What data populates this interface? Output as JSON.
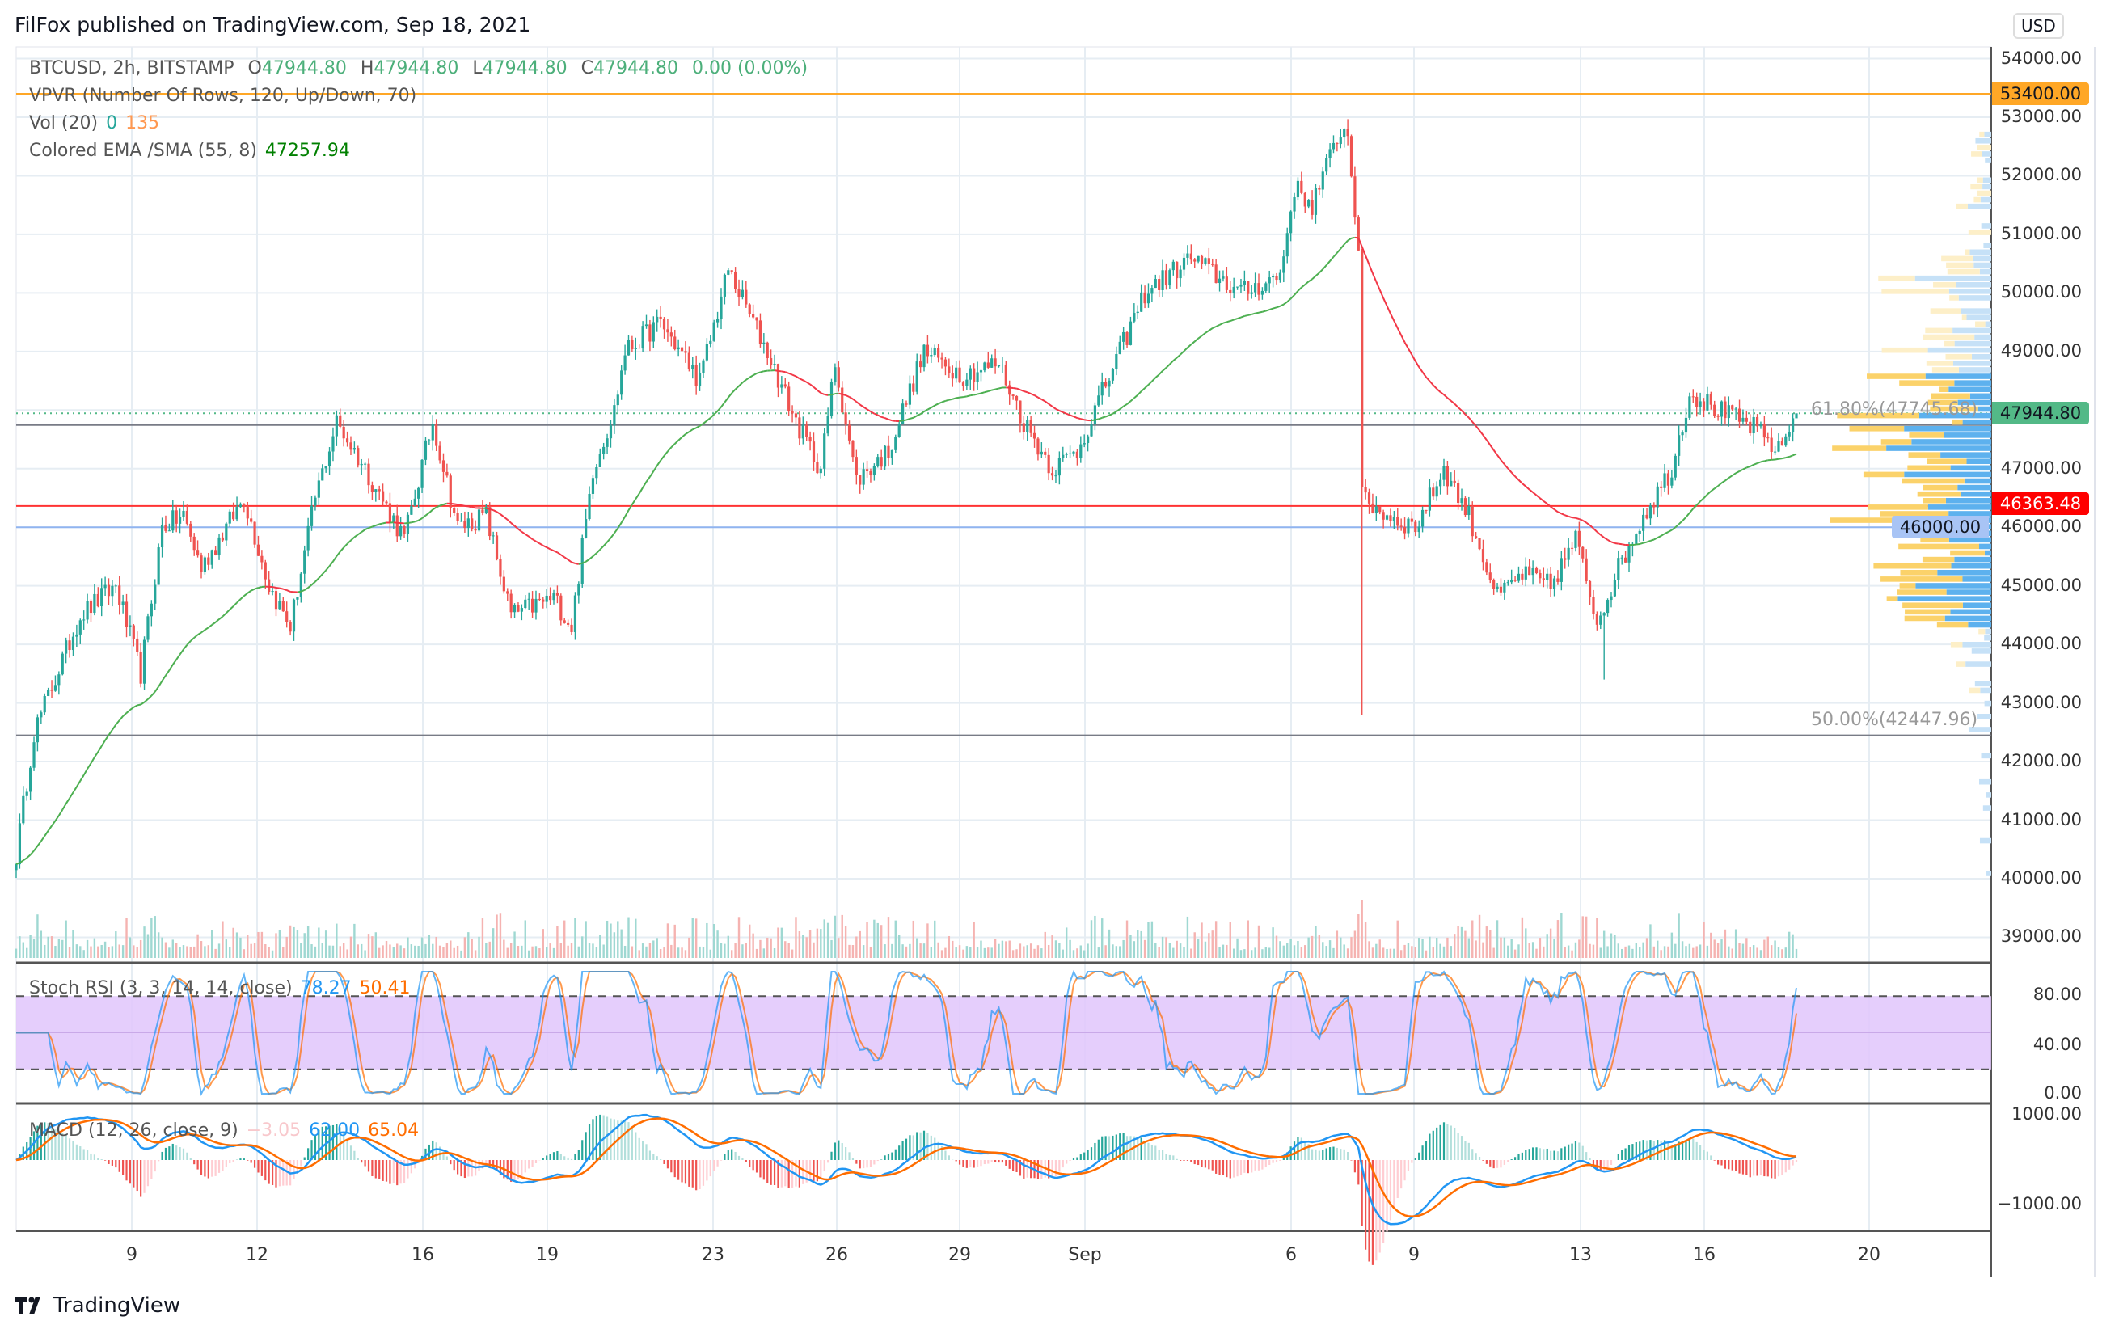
{
  "header": {
    "published": "FilFox published on TradingView.com, Sep 18, 2021"
  },
  "legend": {
    "symbol": "BTCUSD, 2h, BITSTAMP",
    "o_label": "O",
    "o": "47944.80",
    "h_label": "H",
    "h": "47944.80",
    "l_label": "L",
    "l": "47944.80",
    "c_label": "C",
    "c": "47944.80",
    "change": "0.00 (0.00%)",
    "vpvr": "VPVR (Number Of Rows, 120, Up/Down, 70)",
    "vol": "Vol (20)",
    "vol_a": "0",
    "vol_b": "135",
    "ema": "Colored EMA /SMA (55, 8)",
    "ema_val": "47257.94",
    "stoch": "Stoch RSI (3, 3, 14, 14, close)",
    "stoch_k": "78.27",
    "stoch_d": "50.41",
    "macd": "MACD (12, 26, close, 9)",
    "macd_hist": "−3.05",
    "macd_line": "62.00",
    "macd_signal": "65.04"
  },
  "price_axis": {
    "currency": "USD",
    "labels": [
      "54000.00",
      "53000.00",
      "52000.00",
      "51000.00",
      "50000.00",
      "49000.00",
      "48000.00",
      "47000.00",
      "46000.00",
      "45000.00",
      "44000.00",
      "43000.00",
      "42000.00",
      "41000.00",
      "40000.00",
      "39000.00"
    ],
    "tags": [
      {
        "text": "53400.00",
        "bg": "#ffa726",
        "fg": "#131722"
      },
      {
        "text": "47944.80",
        "bg": "#53b987",
        "fg": "#131722"
      },
      {
        "text": "46363.48",
        "bg": "#ff0000",
        "fg": "#ffffff"
      },
      {
        "text": "46000.00",
        "bg": "#a8c4f5",
        "fg": "#131722"
      }
    ]
  },
  "stoch_axis": [
    "80.00",
    "40.00",
    "0.00"
  ],
  "macd_axis": [
    "1000.00",
    "−1000.00"
  ],
  "time_axis": [
    "9",
    "12",
    "16",
    "19",
    "23",
    "26",
    "29",
    "Sep",
    "6",
    "9",
    "13",
    "16",
    "20"
  ],
  "fib": {
    "f618": "61.80%(47745.68)",
    "f50": "50.00%(42447.96)"
  },
  "footer": {
    "brand": "TradingView"
  },
  "colors": {
    "up": "#26a69a",
    "down": "#ef5350",
    "ema_up": "#4caf50",
    "ema_down": "#f23645",
    "stoch_k": "#2196f3",
    "stoch_d": "#ff6d00",
    "band": "#e1c6fb"
  },
  "chart_data": {
    "type": "candlestick",
    "title": "BTCUSD, 2h, BITSTAMP",
    "x_unit": "2h bar index (Aug 7 – Sep 18, 2021)",
    "close_keypoints": [
      [
        0,
        40400
      ],
      [
        5,
        42500
      ],
      [
        18,
        44500
      ],
      [
        28,
        45000
      ],
      [
        35,
        43500
      ],
      [
        41,
        46000
      ],
      [
        47,
        46200
      ],
      [
        52,
        45300
      ],
      [
        64,
        46500
      ],
      [
        71,
        45000
      ],
      [
        77,
        44300
      ],
      [
        84,
        46500
      ],
      [
        90,
        47800
      ],
      [
        98,
        47000
      ],
      [
        109,
        45800
      ],
      [
        117,
        47800
      ],
      [
        124,
        46000
      ],
      [
        132,
        46200
      ],
      [
        139,
        44500
      ],
      [
        151,
        44800
      ],
      [
        156,
        44300
      ],
      [
        162,
        47000
      ],
      [
        168,
        48000
      ],
      [
        171,
        49000
      ],
      [
        181,
        49500
      ],
      [
        192,
        48500
      ],
      [
        200,
        50400
      ],
      [
        211,
        49000
      ],
      [
        219,
        47800
      ],
      [
        226,
        47000
      ],
      [
        230,
        48800
      ],
      [
        236,
        46800
      ],
      [
        245,
        47300
      ],
      [
        255,
        49000
      ],
      [
        266,
        48600
      ],
      [
        276,
        48800
      ],
      [
        283,
        47800
      ],
      [
        291,
        47000
      ],
      [
        298,
        47300
      ],
      [
        310,
        49000
      ],
      [
        317,
        50000
      ],
      [
        330,
        50600
      ],
      [
        344,
        50000
      ],
      [
        355,
        50300
      ],
      [
        359,
        51800
      ],
      [
        364,
        51500
      ],
      [
        372,
        52800
      ],
      [
        374,
        52700
      ],
      [
        377,
        50800
      ],
      [
        378,
        46500
      ],
      [
        385,
        46200
      ],
      [
        393,
        46000
      ],
      [
        401,
        47000
      ],
      [
        408,
        46200
      ],
      [
        416,
        44800
      ],
      [
        423,
        45200
      ],
      [
        431,
        45000
      ],
      [
        438,
        45800
      ],
      [
        444,
        44400
      ],
      [
        450,
        45300
      ],
      [
        457,
        46200
      ],
      [
        465,
        47000
      ],
      [
        470,
        48300
      ],
      [
        478,
        48000
      ],
      [
        488,
        47700
      ],
      [
        495,
        47300
      ],
      [
        500,
        47944.8
      ]
    ],
    "horizontal_lines": [
      53400,
      47944.8,
      47745.68,
      46363.48,
      46000,
      42447.96
    ],
    "ylim": [
      38500,
      54300
    ],
    "ema_period": 55,
    "stoch_rsi": {
      "k": 78.27,
      "d": 50.41,
      "bands": [
        20,
        80
      ]
    },
    "macd": {
      "hist": -3.05,
      "macd": 62.0,
      "signal": 65.04
    }
  }
}
